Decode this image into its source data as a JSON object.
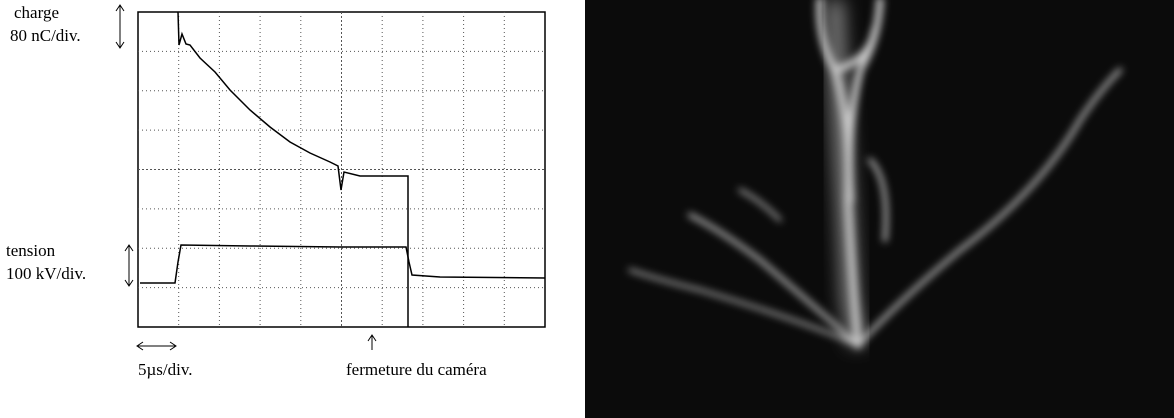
{
  "scope": {
    "charge_label": "charge",
    "charge_scale": "80 nC/div.",
    "tension_label": "tension",
    "tension_scale": "100 kV/div.",
    "time_scale": "5µs/div.",
    "shutter_label": "fermeture du caméra"
  }
}
